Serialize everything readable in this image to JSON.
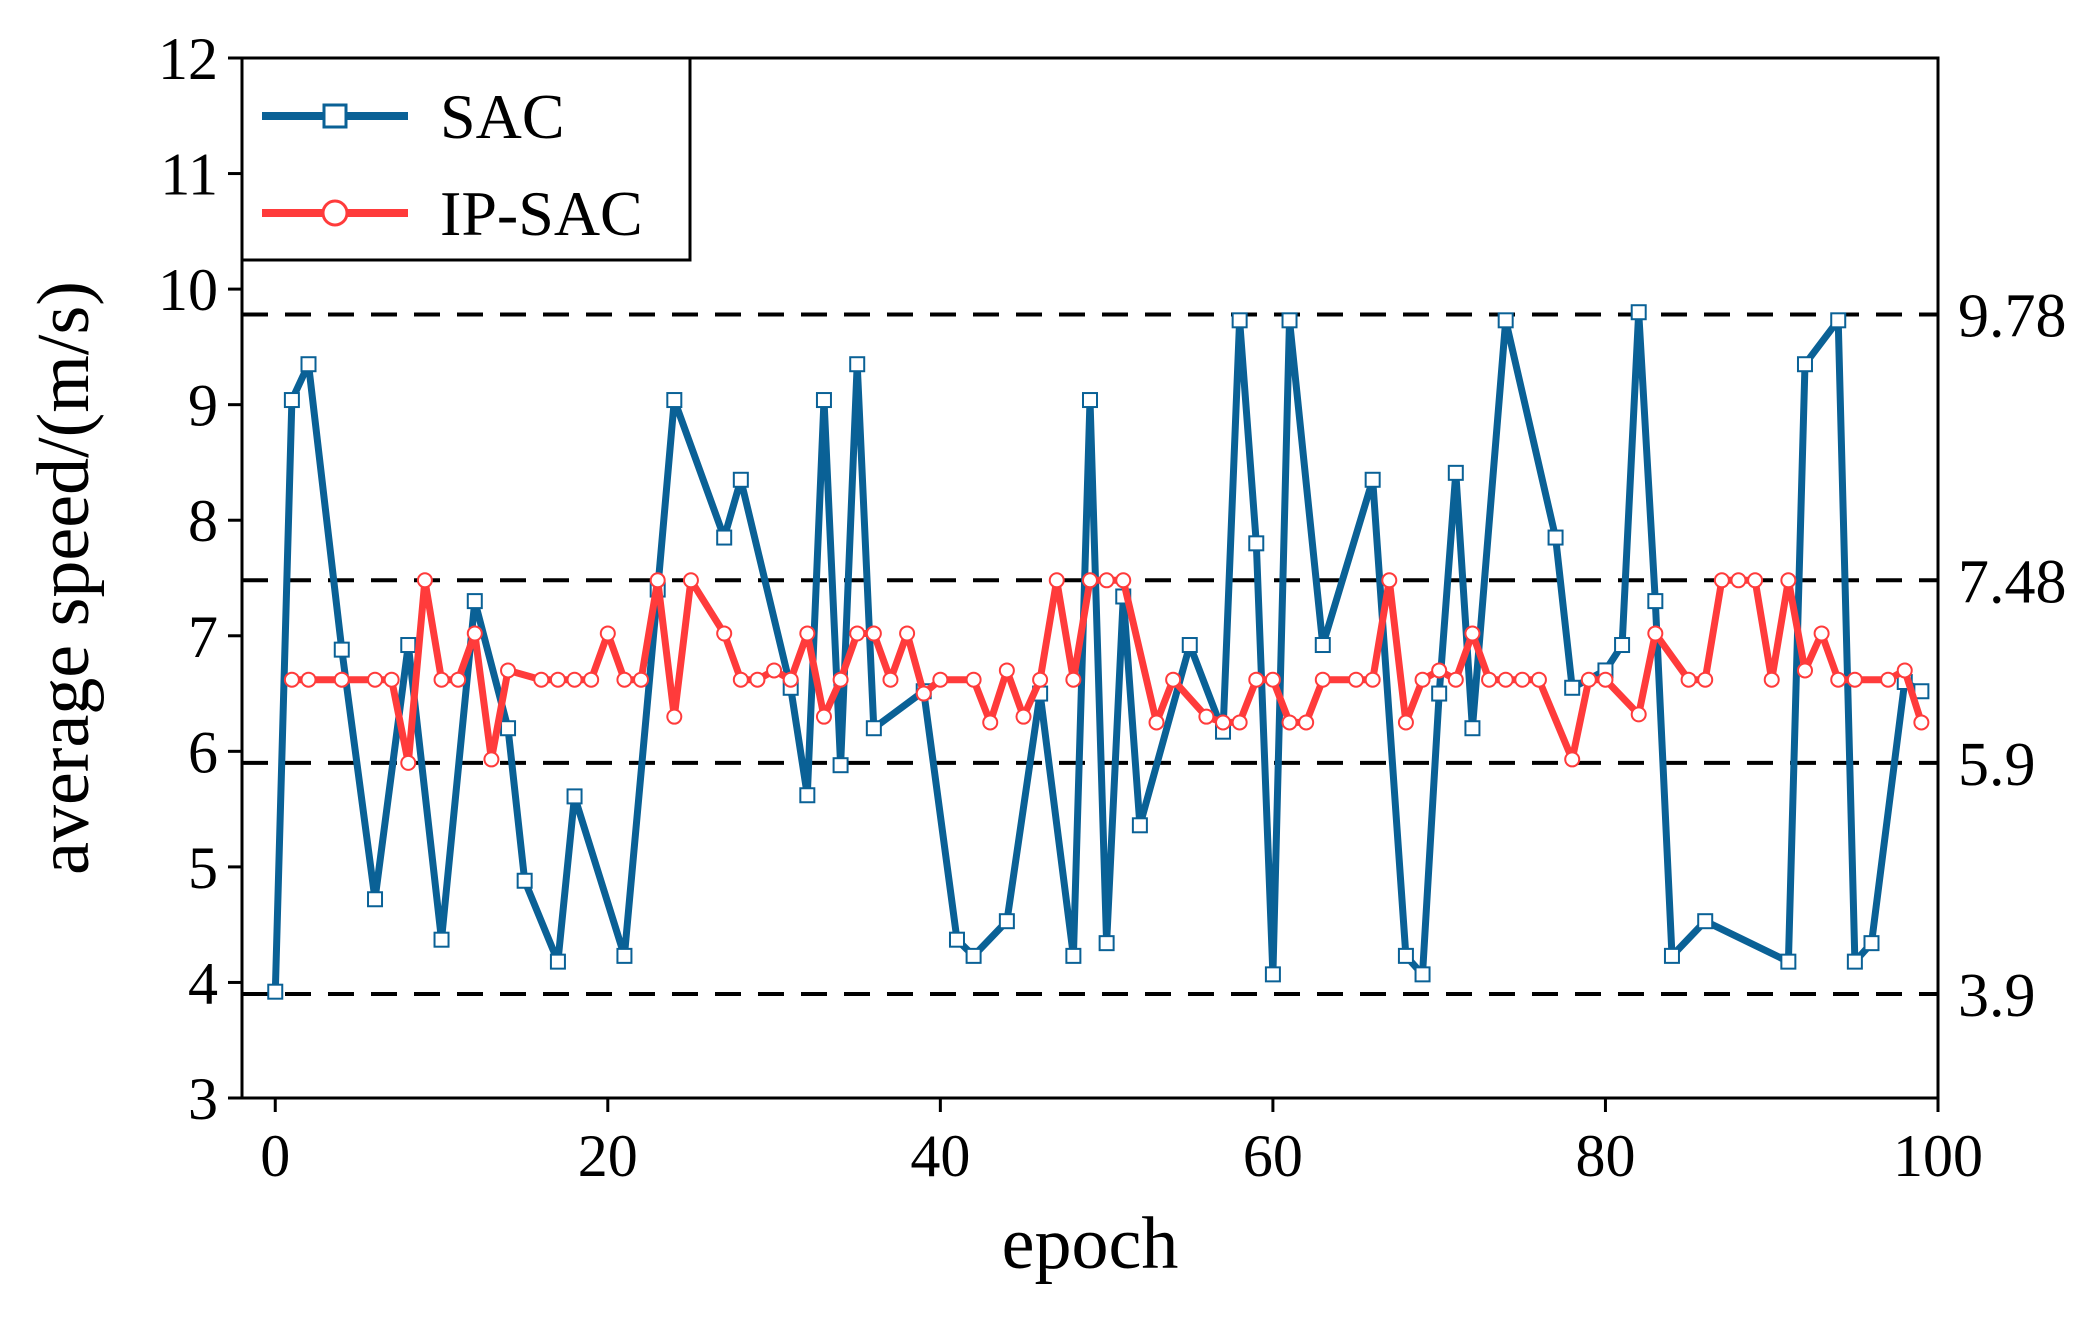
{
  "chart_data": {
    "type": "line",
    "title": "",
    "xlabel": "epoch",
    "ylabel": "average speed/(m/s)",
    "xlim": [
      -2,
      100
    ],
    "ylim": [
      3,
      12
    ],
    "xticks": [
      0,
      20,
      40,
      60,
      80,
      100
    ],
    "yticks": [
      3,
      4,
      5,
      6,
      7,
      8,
      9,
      10,
      11,
      12
    ],
    "grid": false,
    "legend_position": "top-left",
    "reference_lines": [
      {
        "value": 9.78,
        "label": "9.78"
      },
      {
        "value": 7.48,
        "label": "7.48"
      },
      {
        "value": 5.9,
        "label": "5.9"
      },
      {
        "value": 3.9,
        "label": "3.9"
      }
    ],
    "series": [
      {
        "name": "SAC",
        "color": "#0a6196",
        "marker": "square",
        "points": [
          [
            0,
            3.92
          ],
          [
            1,
            9.04
          ],
          [
            2,
            9.35
          ],
          [
            4,
            6.88
          ],
          [
            6,
            4.72
          ],
          [
            8,
            6.92
          ],
          [
            10,
            4.37
          ],
          [
            12,
            7.3
          ],
          [
            14,
            6.2
          ],
          [
            15,
            4.88
          ],
          [
            17,
            4.18
          ],
          [
            18,
            5.61
          ],
          [
            21,
            4.23
          ],
          [
            23,
            7.4
          ],
          [
            24,
            9.04
          ],
          [
            27,
            7.85
          ],
          [
            28,
            8.35
          ],
          [
            31,
            6.55
          ],
          [
            32,
            5.62
          ],
          [
            33,
            9.04
          ],
          [
            34,
            5.88
          ],
          [
            35,
            9.35
          ],
          [
            36,
            6.2
          ],
          [
            39,
            6.52
          ],
          [
            41,
            4.37
          ],
          [
            42,
            4.23
          ],
          [
            44,
            4.53
          ],
          [
            46,
            6.5
          ],
          [
            48,
            4.23
          ],
          [
            49,
            9.04
          ],
          [
            50,
            4.34
          ],
          [
            51,
            7.34
          ],
          [
            52,
            5.36
          ],
          [
            55,
            6.92
          ],
          [
            57,
            6.17
          ],
          [
            58,
            9.73
          ],
          [
            59,
            7.8
          ],
          [
            60,
            4.07
          ],
          [
            61,
            9.73
          ],
          [
            63,
            6.92
          ],
          [
            66,
            8.35
          ],
          [
            68,
            4.23
          ],
          [
            69,
            4.07
          ],
          [
            70,
            6.5
          ],
          [
            71,
            8.41
          ],
          [
            72,
            6.2
          ],
          [
            74,
            9.73
          ],
          [
            77,
            7.85
          ],
          [
            78,
            6.55
          ],
          [
            80,
            6.7
          ],
          [
            81,
            6.92
          ],
          [
            82,
            9.8
          ],
          [
            83,
            7.3
          ],
          [
            84,
            4.23
          ],
          [
            86,
            4.53
          ],
          [
            91,
            4.18
          ],
          [
            92,
            9.35
          ],
          [
            94,
            9.73
          ],
          [
            95,
            4.18
          ],
          [
            96,
            4.34
          ],
          [
            98,
            6.6
          ],
          [
            99,
            6.52
          ]
        ]
      },
      {
        "name": "IP-SAC",
        "color": "#ff3b3b",
        "marker": "circle",
        "points": [
          [
            1,
            6.62
          ],
          [
            2,
            6.62
          ],
          [
            4,
            6.62
          ],
          [
            6,
            6.62
          ],
          [
            7,
            6.62
          ],
          [
            8,
            5.9
          ],
          [
            9,
            7.48
          ],
          [
            10,
            6.62
          ],
          [
            11,
            6.62
          ],
          [
            12,
            7.02
          ],
          [
            13,
            5.93
          ],
          [
            14,
            6.7
          ],
          [
            16,
            6.62
          ],
          [
            17,
            6.62
          ],
          [
            18,
            6.62
          ],
          [
            19,
            6.62
          ],
          [
            20,
            7.02
          ],
          [
            21,
            6.62
          ],
          [
            22,
            6.62
          ],
          [
            23,
            7.48
          ],
          [
            24,
            6.3
          ],
          [
            25,
            7.48
          ],
          [
            27,
            7.02
          ],
          [
            28,
            6.62
          ],
          [
            29,
            6.62
          ],
          [
            30,
            6.7
          ],
          [
            31,
            6.62
          ],
          [
            32,
            7.02
          ],
          [
            33,
            6.3
          ],
          [
            34,
            6.62
          ],
          [
            35,
            7.02
          ],
          [
            36,
            7.02
          ],
          [
            37,
            6.62
          ],
          [
            38,
            7.02
          ],
          [
            39,
            6.5
          ],
          [
            40,
            6.62
          ],
          [
            42,
            6.62
          ],
          [
            43,
            6.25
          ],
          [
            44,
            6.7
          ],
          [
            45,
            6.3
          ],
          [
            46,
            6.62
          ],
          [
            47,
            7.48
          ],
          [
            48,
            6.62
          ],
          [
            49,
            7.48
          ],
          [
            50,
            7.48
          ],
          [
            51,
            7.48
          ],
          [
            53,
            6.25
          ],
          [
            54,
            6.62
          ],
          [
            56,
            6.3
          ],
          [
            57,
            6.25
          ],
          [
            58,
            6.25
          ],
          [
            59,
            6.62
          ],
          [
            60,
            6.62
          ],
          [
            61,
            6.25
          ],
          [
            62,
            6.25
          ],
          [
            63,
            6.62
          ],
          [
            65,
            6.62
          ],
          [
            66,
            6.62
          ],
          [
            67,
            7.48
          ],
          [
            68,
            6.25
          ],
          [
            69,
            6.62
          ],
          [
            70,
            6.7
          ],
          [
            71,
            6.62
          ],
          [
            72,
            7.02
          ],
          [
            73,
            6.62
          ],
          [
            74,
            6.62
          ],
          [
            75,
            6.62
          ],
          [
            76,
            6.62
          ],
          [
            78,
            5.93
          ],
          [
            79,
            6.62
          ],
          [
            80,
            6.62
          ],
          [
            82,
            6.32
          ],
          [
            83,
            7.02
          ],
          [
            85,
            6.62
          ],
          [
            86,
            6.62
          ],
          [
            87,
            7.48
          ],
          [
            88,
            7.48
          ],
          [
            89,
            7.48
          ],
          [
            90,
            6.62
          ],
          [
            91,
            7.48
          ],
          [
            92,
            6.7
          ],
          [
            93,
            7.02
          ],
          [
            94,
            6.62
          ],
          [
            95,
            6.62
          ],
          [
            97,
            6.62
          ],
          [
            98,
            6.7
          ],
          [
            99,
            6.25
          ]
        ]
      }
    ]
  }
}
